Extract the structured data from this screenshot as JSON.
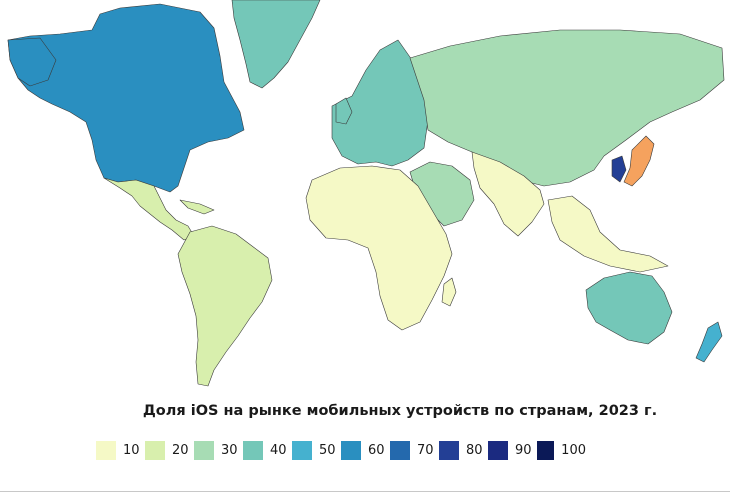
{
  "title": "Доля iOS на рынке мобильных устройств по странам, 2023 г.",
  "legend": {
    "items": [
      {
        "label": "10",
        "color": "#f5f9c6"
      },
      {
        "label": "20",
        "color": "#d8efad"
      },
      {
        "label": "30",
        "color": "#a7dcb4"
      },
      {
        "label": "40",
        "color": "#74c7b8"
      },
      {
        "label": "50",
        "color": "#45b1cf"
      },
      {
        "label": "60",
        "color": "#2a8fc0"
      },
      {
        "label": "70",
        "color": "#2469ad"
      },
      {
        "label": "80",
        "color": "#233f95"
      },
      {
        "label": "90",
        "color": "#1b2a80"
      },
      {
        "label": "100",
        "color": "#0b1957"
      }
    ]
  },
  "map": {
    "regions": [
      {
        "name": "north-america",
        "color": "#2a8fc0"
      },
      {
        "name": "greenland",
        "color": "#74c7b8"
      },
      {
        "name": "mexico-central-america",
        "color": "#d8efad"
      },
      {
        "name": "south-america",
        "color": "#d8efad"
      },
      {
        "name": "europe",
        "color": "#74c7b8"
      },
      {
        "name": "russia-asia",
        "color": "#a7dcb4"
      },
      {
        "name": "middle-east",
        "color": "#a7dcb4"
      },
      {
        "name": "africa",
        "color": "#f5f9c6"
      },
      {
        "name": "south-asia",
        "color": "#f5f9c6"
      },
      {
        "name": "japan",
        "color": "#f5a25e"
      },
      {
        "name": "korea",
        "color": "#233f95"
      },
      {
        "name": "australia",
        "color": "#74c7b8"
      },
      {
        "name": "new-zealand",
        "color": "#45b1cf"
      }
    ]
  }
}
